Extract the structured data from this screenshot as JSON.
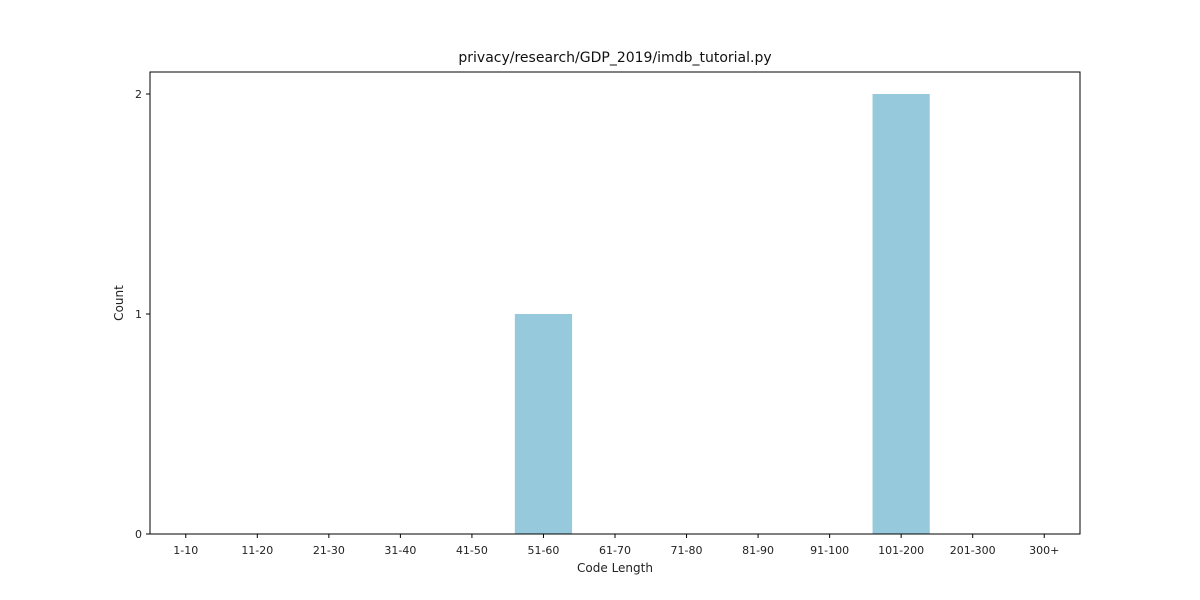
{
  "chart_data": {
    "type": "bar",
    "title": "privacy/research/GDP_2019/imdb_tutorial.py",
    "xlabel": "Code Length",
    "ylabel": "Count",
    "categories": [
      "1-10",
      "11-20",
      "21-30",
      "31-40",
      "41-50",
      "51-60",
      "61-70",
      "71-80",
      "81-90",
      "91-100",
      "101-200",
      "201-300",
      "300+"
    ],
    "values": [
      0,
      0,
      0,
      0,
      0,
      1,
      0,
      0,
      0,
      0,
      2,
      0,
      0
    ],
    "ylim": [
      0,
      2.1
    ],
    "yticks": [
      0,
      1,
      2
    ],
    "bar_color": "#96c9dc",
    "grid": false
  }
}
